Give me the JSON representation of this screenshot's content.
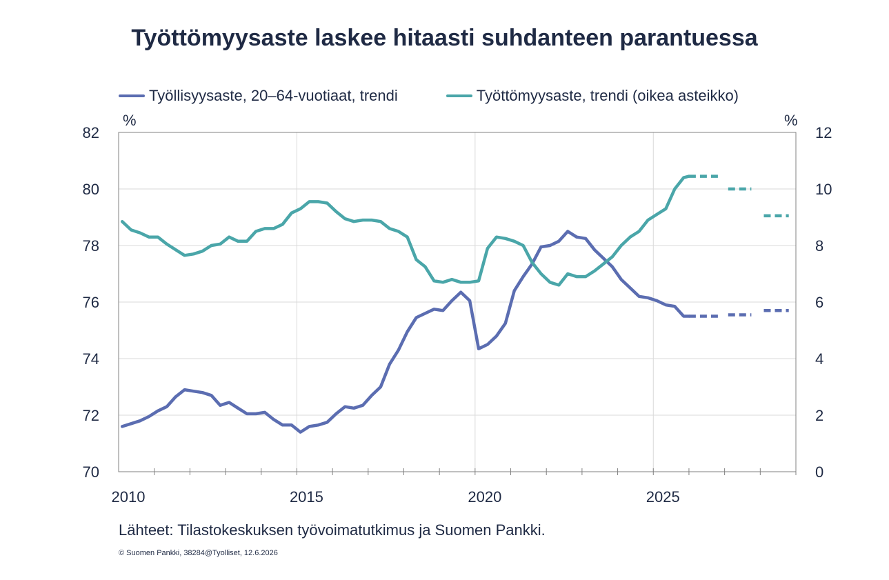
{
  "title": "Työttömyysaste laskee hitaasti suhdanteen parantuessa",
  "source_note": "Lähteet: Tilastokeskuksen työvoimatutkimus  ja Suomen Pankki.",
  "copyright": "© Suomen Pankki, 38284@Tyolliset, 12.6.2026",
  "chart_data": {
    "type": "line",
    "title": "Työttömyysaste laskee hitaasti suhdanteen parantuessa",
    "left_unit": "%",
    "right_unit": "%",
    "y_left": {
      "min": 70,
      "max": 82,
      "ticks": [
        70,
        72,
        74,
        76,
        78,
        80,
        82
      ]
    },
    "y_right": {
      "min": 0,
      "max": 12,
      "ticks": [
        0,
        2,
        4,
        6,
        8,
        10,
        12
      ]
    },
    "x_axis": {
      "min": 2010,
      "max": 2029,
      "tick_labels": [
        "2010",
        "2015",
        "2020",
        "2025"
      ]
    },
    "grid": true,
    "legend_position": "top",
    "series": [
      {
        "name": "Työllisyysaste, 20–64-vuotiaat, trendi",
        "axis": "left",
        "color": "#5b6db1",
        "x": [
          2010.1,
          2010.35,
          2010.6,
          2010.85,
          2011.1,
          2011.35,
          2011.6,
          2011.85,
          2012.1,
          2012.35,
          2012.6,
          2012.85,
          2013.1,
          2013.35,
          2013.6,
          2013.85,
          2014.1,
          2014.35,
          2014.6,
          2014.85,
          2015.1,
          2015.35,
          2015.6,
          2015.85,
          2016.1,
          2016.35,
          2016.6,
          2016.85,
          2017.1,
          2017.35,
          2017.6,
          2017.85,
          2018.1,
          2018.35,
          2018.6,
          2018.85,
          2019.1,
          2019.35,
          2019.6,
          2019.85,
          2020.1,
          2020.35,
          2020.6,
          2020.85,
          2021.1,
          2021.35,
          2021.6,
          2021.85,
          2022.1,
          2022.35,
          2022.6,
          2022.85,
          2023.1,
          2023.35,
          2023.6,
          2023.85,
          2024.1,
          2024.35,
          2024.6,
          2024.85,
          2025.1,
          2025.35,
          2025.6,
          2025.85,
          2026.0
        ],
        "y": [
          71.6,
          71.7,
          71.8,
          71.95,
          72.15,
          72.3,
          72.65,
          72.9,
          72.85,
          72.8,
          72.7,
          72.35,
          72.45,
          72.25,
          72.05,
          72.05,
          72.1,
          71.85,
          71.65,
          71.65,
          71.4,
          71.6,
          71.65,
          71.75,
          72.05,
          72.3,
          72.25,
          72.35,
          72.7,
          73.0,
          73.8,
          74.3,
          74.95,
          75.45,
          75.6,
          75.75,
          75.7,
          76.05,
          76.35,
          76.05,
          74.35,
          74.5,
          74.8,
          75.25,
          76.4,
          76.9,
          77.35,
          77.95,
          78.0,
          78.15,
          78.5,
          78.3,
          78.25,
          77.85,
          77.55,
          77.25,
          76.8,
          76.5,
          76.2,
          76.15,
          76.05,
          75.9,
          75.85,
          75.5,
          75.5
        ],
        "forecast": [
          {
            "x": [
              2026.0,
              2026.85
            ],
            "y": [
              75.5,
              75.5
            ]
          },
          {
            "x": [
              2027.1,
              2027.75
            ],
            "y": [
              75.55,
              75.55
            ]
          },
          {
            "x": [
              2028.1,
              2028.8
            ],
            "y": [
              75.7,
              75.7
            ]
          }
        ]
      },
      {
        "name": "Työttömyysaste, trendi (oikea asteikko)",
        "axis": "right",
        "color": "#4aa6a9",
        "x": [
          2010.1,
          2010.35,
          2010.6,
          2010.85,
          2011.1,
          2011.35,
          2011.6,
          2011.85,
          2012.1,
          2012.35,
          2012.6,
          2012.85,
          2013.1,
          2013.35,
          2013.6,
          2013.85,
          2014.1,
          2014.35,
          2014.6,
          2014.85,
          2015.1,
          2015.35,
          2015.6,
          2015.85,
          2016.1,
          2016.35,
          2016.6,
          2016.85,
          2017.1,
          2017.35,
          2017.6,
          2017.85,
          2018.1,
          2018.35,
          2018.6,
          2018.85,
          2019.1,
          2019.35,
          2019.6,
          2019.85,
          2020.1,
          2020.35,
          2020.6,
          2020.85,
          2021.1,
          2021.35,
          2021.6,
          2021.85,
          2022.1,
          2022.35,
          2022.6,
          2022.85,
          2023.1,
          2023.35,
          2023.6,
          2023.85,
          2024.1,
          2024.35,
          2024.6,
          2024.85,
          2025.1,
          2025.35,
          2025.6,
          2025.85,
          2026.0
        ],
        "y": [
          8.85,
          8.55,
          8.45,
          8.3,
          8.3,
          8.05,
          7.85,
          7.65,
          7.7,
          7.8,
          8.0,
          8.05,
          8.3,
          8.15,
          8.15,
          8.5,
          8.6,
          8.6,
          8.75,
          9.15,
          9.3,
          9.55,
          9.55,
          9.5,
          9.2,
          8.95,
          8.85,
          8.9,
          8.9,
          8.85,
          8.6,
          8.5,
          8.3,
          7.5,
          7.25,
          6.75,
          6.7,
          6.8,
          6.7,
          6.7,
          6.75,
          7.9,
          8.3,
          8.25,
          8.15,
          8.0,
          7.4,
          7.0,
          6.7,
          6.6,
          7.0,
          6.9,
          6.9,
          7.1,
          7.35,
          7.6,
          8.0,
          8.3,
          8.5,
          8.9,
          9.1,
          9.3,
          10.0,
          10.4,
          10.45
        ],
        "forecast": [
          {
            "x": [
              2026.0,
              2026.85
            ],
            "y": [
              10.45,
              10.45
            ]
          },
          {
            "x": [
              2027.1,
              2027.75
            ],
            "y": [
              10.0,
              10.0
            ]
          },
          {
            "x": [
              2028.1,
              2028.8
            ],
            "y": [
              9.05,
              9.05
            ]
          }
        ]
      }
    ]
  }
}
